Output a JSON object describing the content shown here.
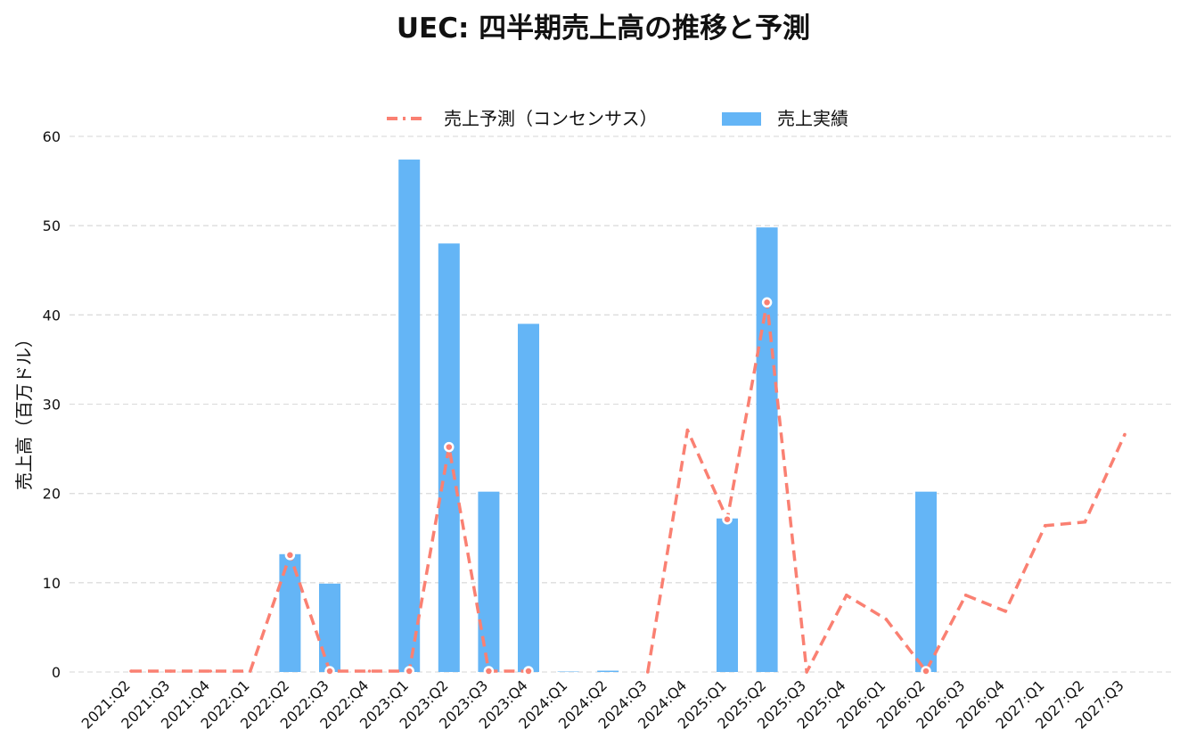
{
  "chart_data": {
    "type": "bar",
    "title": "UEC: 四半期売上高の推移と予測",
    "xlabel": "",
    "ylabel": "売上高（百万ドル）",
    "ylim": [
      0,
      60
    ],
    "yticks": [
      0,
      10,
      20,
      30,
      40,
      50,
      60
    ],
    "grid": "horizontal dashed",
    "legend": "top-center",
    "categories": [
      "2021:Q2",
      "2021:Q3",
      "2021:Q4",
      "2022:Q1",
      "2022:Q2",
      "2022:Q3",
      "2022:Q4",
      "2023:Q1",
      "2023:Q2",
      "2023:Q3",
      "2023:Q4",
      "2024:Q1",
      "2024:Q2",
      "2024:Q3",
      "2024:Q4",
      "2025:Q1",
      "2025:Q2",
      "2025:Q3",
      "2025:Q4",
      "2026:Q1",
      "2026:Q2",
      "2026:Q3",
      "2026:Q4",
      "2027:Q1",
      "2027:Q2",
      "2027:Q3"
    ],
    "series": [
      {
        "name": "売上実績",
        "kind": "bar",
        "color": "#64b5f6",
        "values": [
          null,
          null,
          null,
          null,
          13.2,
          9.9,
          null,
          57.4,
          48.0,
          20.2,
          39.0,
          0.05,
          0.15,
          null,
          null,
          17.2,
          49.8,
          null,
          null,
          null,
          20.2,
          null,
          null,
          null,
          null,
          null
        ]
      },
      {
        "name": "売上予測（コンセンサス）",
        "kind": "line",
        "color": "#fa8072",
        "values": [
          0.1,
          0.1,
          0.1,
          0.1,
          13.1,
          0.1,
          0.1,
          0.1,
          25.2,
          0.1,
          0.1,
          null,
          null,
          0,
          27.1,
          17.1,
          41.4,
          0,
          8.6,
          5.9,
          0.1,
          8.6,
          6.8,
          16.4,
          16.8,
          26.6
        ],
        "markers": [
          false,
          false,
          false,
          false,
          true,
          true,
          false,
          true,
          true,
          true,
          true,
          false,
          false,
          false,
          false,
          true,
          true,
          false,
          false,
          false,
          true,
          false,
          false,
          false,
          false,
          false
        ]
      }
    ]
  }
}
